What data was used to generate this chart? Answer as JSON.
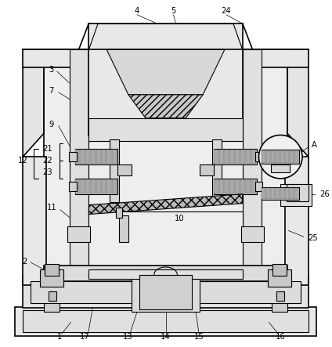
{
  "bg_color": "#ffffff",
  "lc": "#000000",
  "fc_light": "#f0f0f0",
  "fc_med": "#e0e0e0",
  "fc_dark": "#c8c8c8",
  "fc_spring": "#b0b0b0",
  "fc_mesh": "#c0c0c0"
}
